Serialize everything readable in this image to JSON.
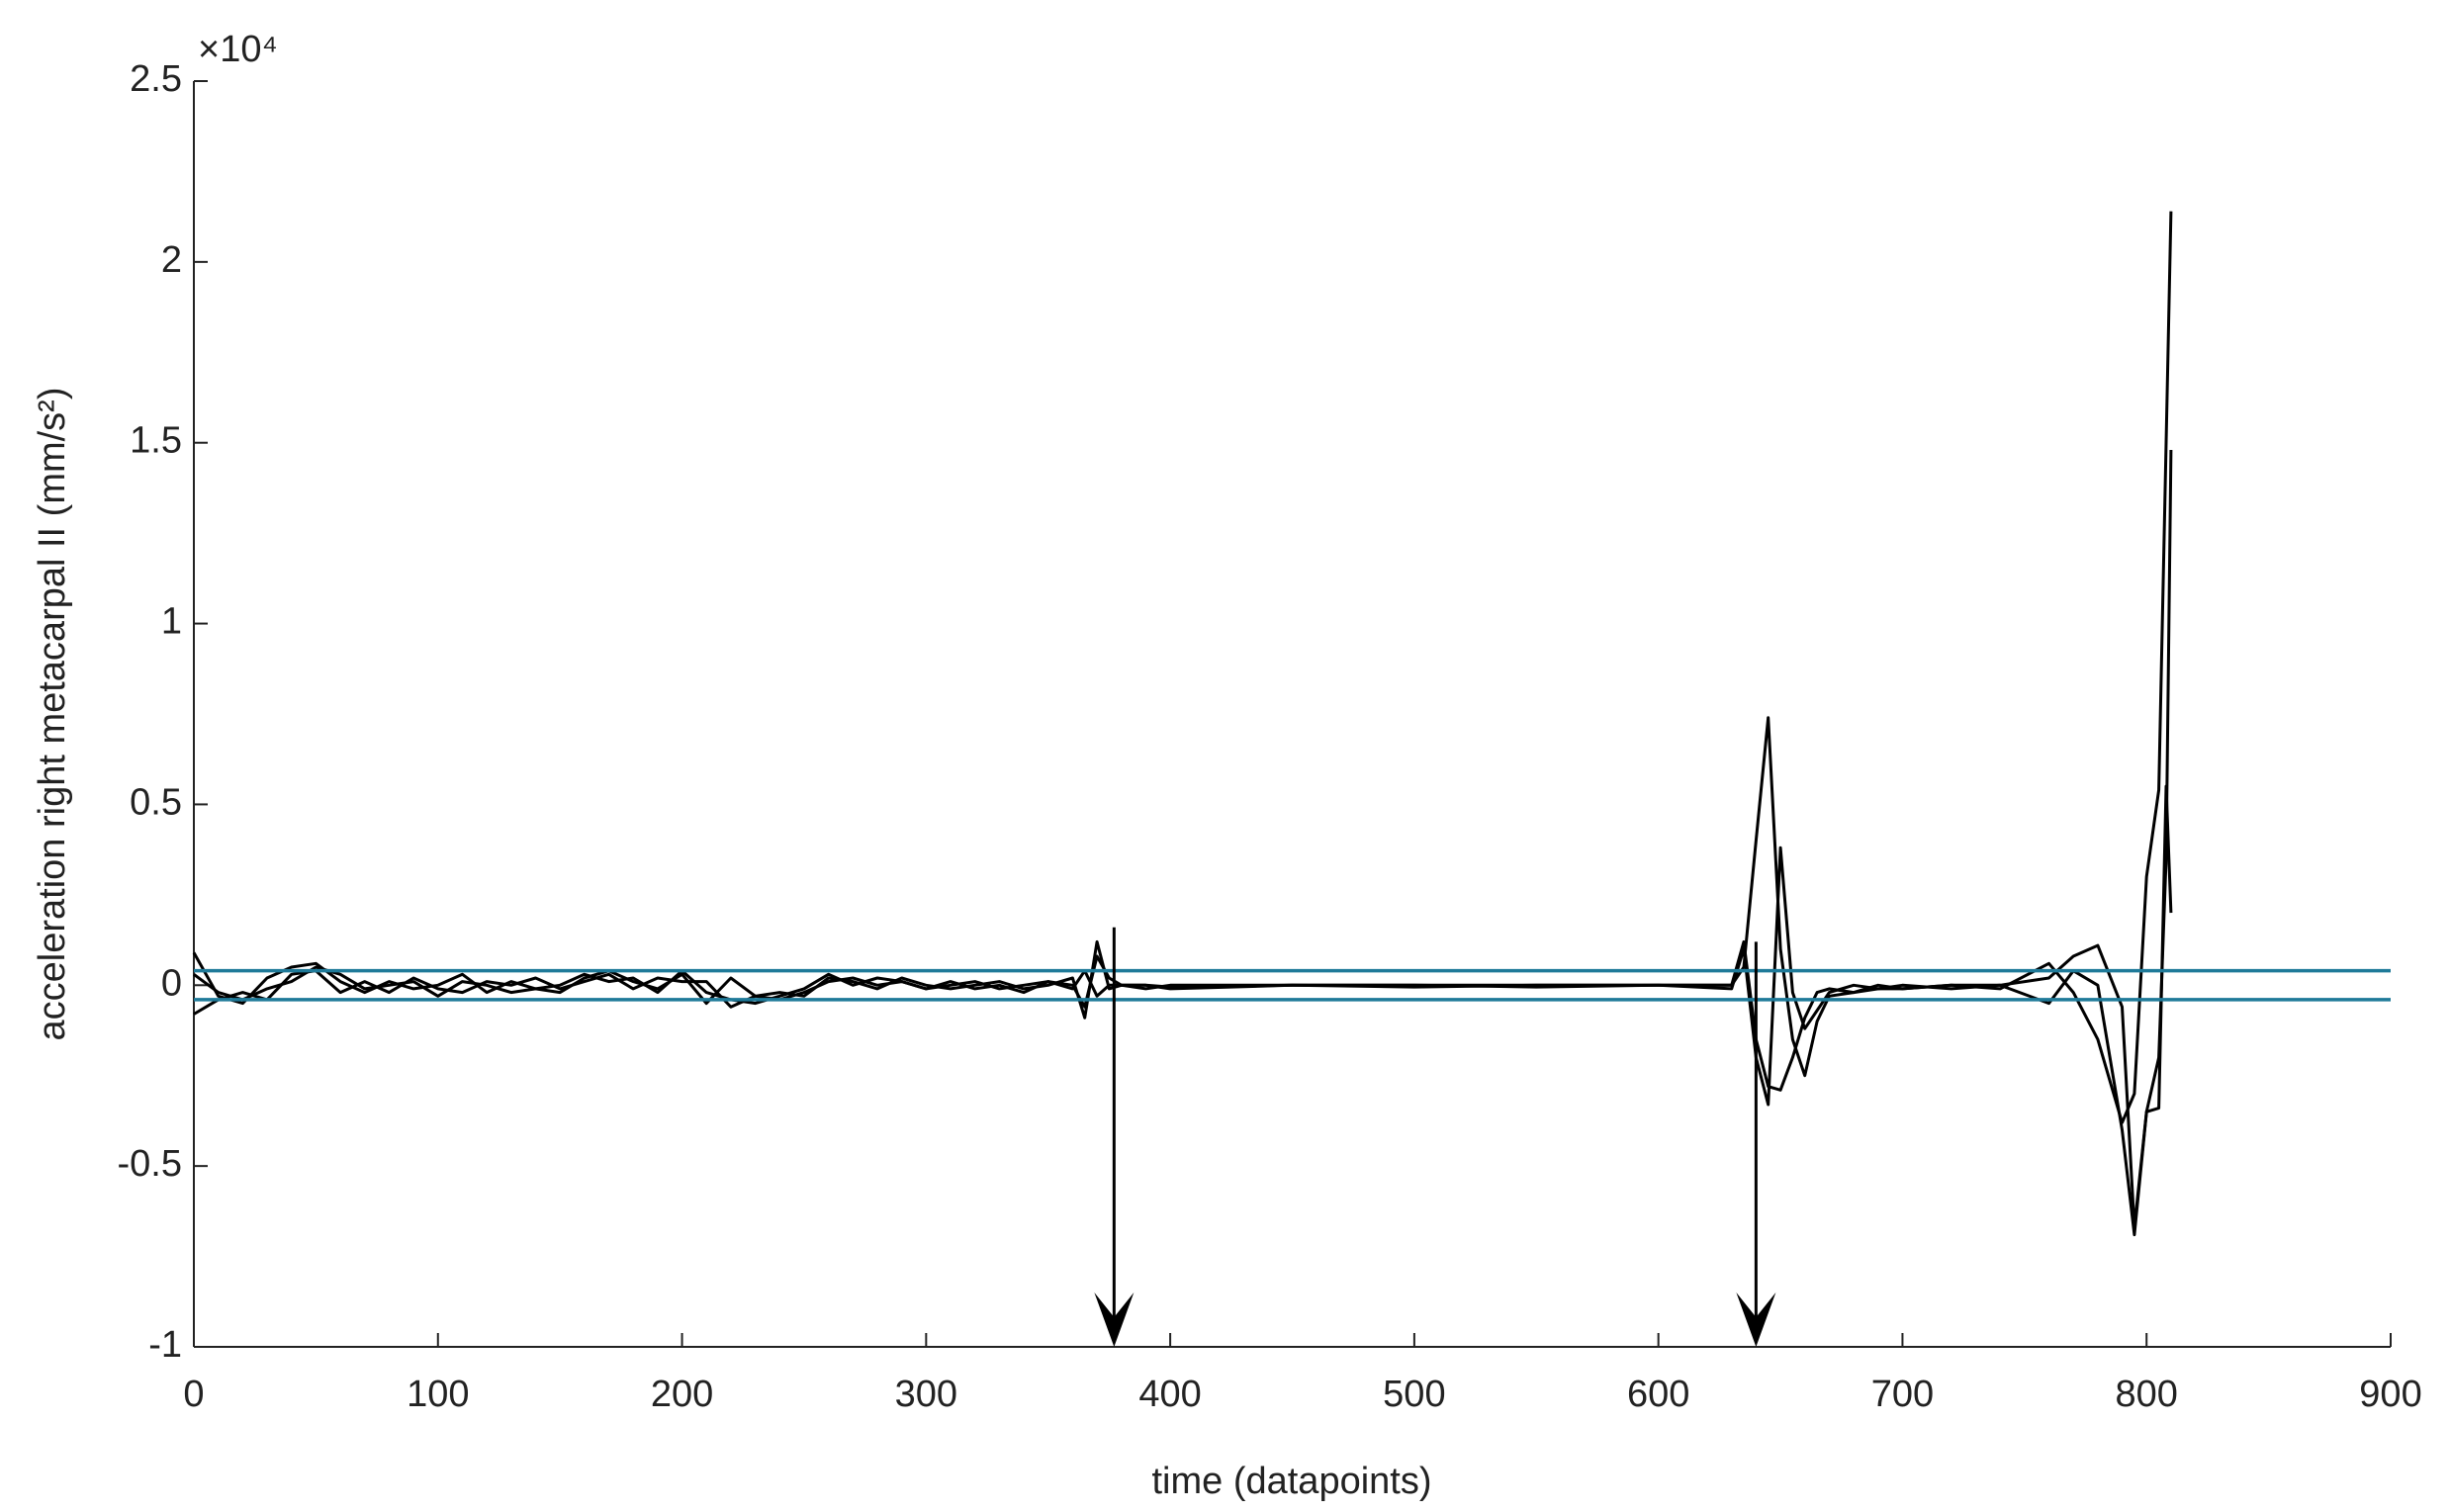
{
  "chart_data": {
    "type": "line",
    "xlabel": "time (datapoints)",
    "ylabel": "acceleration right metacarpal II (mm/s²)",
    "y_exponent": "×10⁴",
    "xlim": [
      0,
      900
    ],
    "xticks": [
      0,
      100,
      200,
      300,
      400,
      500,
      600,
      700,
      800,
      900
    ],
    "ylim": [
      -10000,
      25000
    ],
    "yticks": [
      {
        "value": -10000,
        "label": "-1"
      },
      {
        "value": -5000,
        "label": "-0.5"
      },
      {
        "value": 0,
        "label": "0"
      },
      {
        "value": 5000,
        "label": "0.5"
      },
      {
        "value": 10000,
        "label": "1"
      },
      {
        "value": 15000,
        "label": "1.5"
      },
      {
        "value": 20000,
        "label": "2"
      },
      {
        "value": 25000,
        "label": "2.5"
      }
    ],
    "x": [
      0,
      10,
      20,
      30,
      40,
      50,
      60,
      70,
      80,
      90,
      100,
      110,
      120,
      130,
      140,
      150,
      160,
      170,
      180,
      190,
      200,
      210,
      220,
      230,
      240,
      250,
      260,
      270,
      280,
      290,
      300,
      310,
      320,
      330,
      340,
      350,
      360,
      365,
      370,
      375,
      380,
      390,
      400,
      450,
      500,
      550,
      600,
      630,
      635,
      640,
      645,
      650,
      655,
      660,
      665,
      670,
      680,
      690,
      700,
      720,
      740,
      760,
      770,
      780,
      790,
      795,
      800,
      805,
      808,
      810
    ],
    "series": [
      {
        "color": "#000000",
        "values": [
          900,
          -300,
          -500,
          200,
          500,
          600,
          100,
          -200,
          100,
          -100,
          0,
          300,
          -200,
          100,
          -100,
          -200,
          200,
          400,
          100,
          -100,
          300,
          -500,
          200,
          -300,
          -400,
          -200,
          100,
          200,
          0,
          100,
          -100,
          0,
          100,
          -100,
          0,
          100,
          0,
          -600,
          800,
          200,
          0,
          0,
          -100,
          0,
          0,
          -50,
          0,
          0,
          500,
          4000,
          7400,
          1000,
          -1500,
          -2500,
          -1000,
          -300,
          -200,
          0,
          -100,
          0,
          -100,
          600,
          -200,
          -1500,
          -3800,
          -3000,
          3000,
          5400,
          15000,
          21400
        ]
      },
      {
        "color": "#000000",
        "values": [
          -800,
          -400,
          -200,
          -400,
          300,
          400,
          -200,
          100,
          -200,
          200,
          -100,
          -200,
          100,
          0,
          200,
          -100,
          100,
          300,
          -100,
          200,
          100,
          100,
          -600,
          -300,
          -200,
          -300,
          200,
          100,
          -100,
          200,
          0,
          -100,
          0,
          100,
          -100,
          0,
          200,
          -900,
          1200,
          -100,
          0,
          -100,
          0,
          0,
          -50,
          0,
          0,
          -100,
          1000,
          -2000,
          -3300,
          3800,
          -200,
          -1200,
          -700,
          -200,
          0,
          -100,
          0,
          -100,
          0,
          -500,
          400,
          0,
          -4000,
          -6900,
          -3500,
          -2000,
          3500,
          14800
        ]
      },
      {
        "color": "#000000",
        "values": [
          300,
          -200,
          -400,
          -100,
          100,
          500,
          300,
          -100,
          0,
          100,
          -300,
          100,
          0,
          -200,
          -100,
          0,
          300,
          100,
          200,
          -200,
          400,
          -200,
          -400,
          -500,
          -300,
          -100,
          300,
          0,
          200,
          100,
          -100,
          100,
          -100,
          0,
          -200,
          100,
          -100,
          400,
          -300,
          0,
          0,
          0,
          -50,
          0,
          0,
          0,
          0,
          0,
          1200,
          -1500,
          -2800,
          -2900,
          -2000,
          -900,
          -200,
          -100,
          -200,
          -100,
          -100,
          0,
          0,
          200,
          800,
          1100,
          -600,
          -6700,
          -3500,
          -3400,
          5500,
          2000
        ]
      }
    ],
    "reference_lines": {
      "values": [
        400,
        -400
      ],
      "color": "#1f7a99"
    },
    "arrows": [
      {
        "x": 377,
        "from": 1600,
        "to": -10000
      },
      {
        "x": 640,
        "from": 1200,
        "to": -10000
      }
    ]
  }
}
